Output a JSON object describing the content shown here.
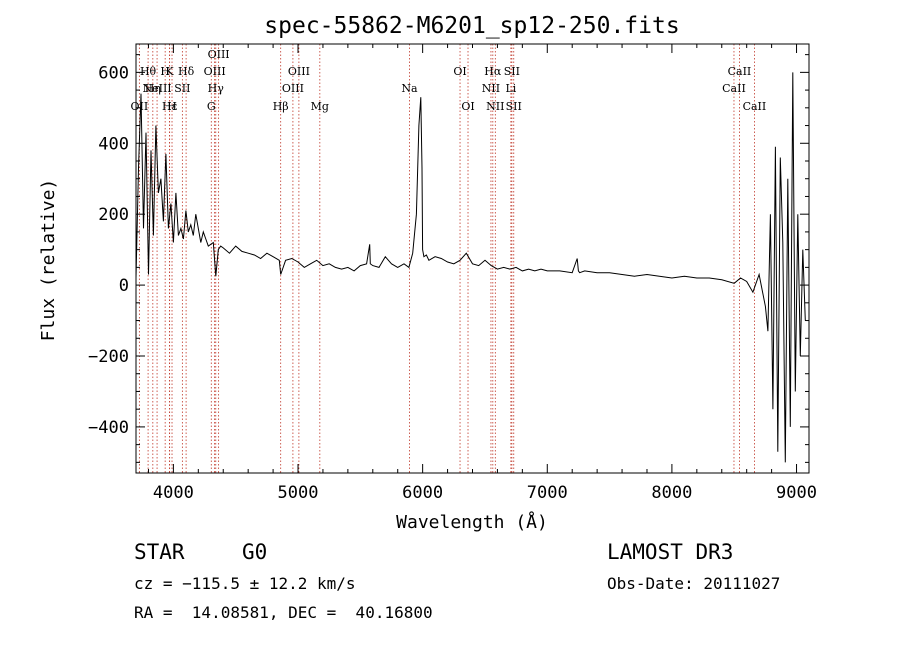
{
  "chart_data": {
    "type": "line",
    "title": "spec-55862-M6201_sp12-250.fits",
    "xlabel": "Wavelength (Å)",
    "ylabel": "Flux (relative)",
    "xlim": [
      3700,
      9100
    ],
    "ylim": [
      -530,
      680
    ],
    "x_ticks": [
      4000,
      5000,
      6000,
      7000,
      8000,
      9000
    ],
    "x_tick_labels": [
      "4000",
      "5000",
      "6000",
      "7000",
      "8000",
      "9000"
    ],
    "y_ticks": [
      -400,
      -200,
      0,
      200,
      400,
      600
    ],
    "y_tick_labels": [
      "−400",
      "−200",
      "0",
      "200",
      "400",
      "600"
    ],
    "grid": false,
    "series": [
      {
        "name": "spectrum",
        "color": "#000000",
        "x": [
          3700,
          3720,
          3740,
          3760,
          3780,
          3800,
          3820,
          3840,
          3860,
          3880,
          3900,
          3920,
          3940,
          3960,
          3980,
          4000,
          4020,
          4040,
          4060,
          4080,
          4100,
          4120,
          4140,
          4160,
          4180,
          4200,
          4220,
          4240,
          4260,
          4280,
          4300,
          4320,
          4340,
          4360,
          4380,
          4400,
          4450,
          4500,
          4550,
          4600,
          4650,
          4700,
          4750,
          4800,
          4850,
          4861,
          4900,
          4950,
          5000,
          5050,
          5100,
          5150,
          5200,
          5250,
          5300,
          5350,
          5400,
          5450,
          5500,
          5550,
          5575,
          5580,
          5600,
          5650,
          5700,
          5750,
          5800,
          5850,
          5890,
          5920,
          5950,
          5970,
          5985,
          5995,
          6000,
          6010,
          6030,
          6050,
          6100,
          6150,
          6200,
          6250,
          6300,
          6350,
          6400,
          6450,
          6500,
          6550,
          6600,
          6650,
          6700,
          6750,
          6800,
          6850,
          6900,
          6950,
          7000,
          7100,
          7200,
          7240,
          7250,
          7260,
          7300,
          7400,
          7500,
          7600,
          7700,
          7800,
          7900,
          8000,
          8100,
          8200,
          8300,
          8400,
          8500,
          8550,
          8600,
          8650,
          8700,
          8750,
          8770,
          8790,
          8810,
          8830,
          8850,
          8870,
          8890,
          8910,
          8930,
          8950,
          8970,
          8990,
          9010,
          9030,
          9050,
          9070
        ],
        "y": [
          20,
          330,
          540,
          160,
          430,
          30,
          380,
          140,
          450,
          260,
          300,
          180,
          370,
          160,
          230,
          120,
          260,
          140,
          160,
          130,
          210,
          150,
          170,
          140,
          200,
          160,
          120,
          150,
          130,
          110,
          115,
          120,
          25,
          100,
          110,
          105,
          90,
          110,
          95,
          90,
          85,
          75,
          90,
          80,
          70,
          30,
          70,
          75,
          65,
          50,
          60,
          70,
          55,
          60,
          50,
          45,
          50,
          40,
          55,
          60,
          115,
          60,
          55,
          50,
          80,
          60,
          50,
          60,
          50,
          90,
          200,
          450,
          530,
          330,
          100,
          80,
          85,
          70,
          80,
          75,
          65,
          60,
          70,
          90,
          60,
          55,
          70,
          55,
          45,
          50,
          45,
          50,
          40,
          45,
          40,
          45,
          40,
          40,
          35,
          75,
          40,
          35,
          40,
          35,
          35,
          30,
          25,
          30,
          25,
          20,
          25,
          20,
          20,
          15,
          5,
          20,
          10,
          -20,
          30,
          -60,
          -130,
          200,
          -350,
          390,
          -470,
          360,
          120,
          -500,
          300,
          -400,
          600,
          -300,
          200,
          -200,
          100,
          -100
        ]
      }
    ],
    "lines": [
      {
        "label": "OII",
        "wavelength": 3727,
        "row": 3
      },
      {
        "label": "Hθ",
        "wavelength": 3797,
        "row": 1
      },
      {
        "label": "Hη",
        "wavelength": 3835,
        "row": 2
      },
      {
        "label": "NeIII",
        "wavelength": 3869,
        "row": 2
      },
      {
        "label": "H",
        "wavelength": 3934,
        "row": 1
      },
      {
        "label": "K",
        "wavelength": 3969,
        "row": 1
      },
      {
        "label": "Hε",
        "wavelength": 3970,
        "row": 3
      },
      {
        "label": "H",
        "wavelength": 3989,
        "row": 3
      },
      {
        "label": "SII",
        "wavelength": 4072,
        "row": 2
      },
      {
        "label": "Hδ",
        "wavelength": 4102,
        "row": 1
      },
      {
        "label": "OIII",
        "wavelength": 4331,
        "row": 1
      },
      {
        "label": "Hγ",
        "wavelength": 4340,
        "row": 2
      },
      {
        "label": "G",
        "wavelength": 4304,
        "row": 3
      },
      {
        "label": "OIII",
        "wavelength": 4363,
        "row": 0
      },
      {
        "label": "Hβ",
        "wavelength": 4861,
        "row": 3
      },
      {
        "label": "OIII",
        "wavelength": 4959,
        "row": 2
      },
      {
        "label": "OIII",
        "wavelength": 5007,
        "row": 1
      },
      {
        "label": "Mg",
        "wavelength": 5175,
        "row": 3
      },
      {
        "label": "Na",
        "wavelength": 5894,
        "row": 2
      },
      {
        "label": "OI",
        "wavelength": 6300,
        "row": 1
      },
      {
        "label": "OI",
        "wavelength": 6364,
        "row": 3
      },
      {
        "label": "NII",
        "wavelength": 6548,
        "row": 2
      },
      {
        "label": "Hα",
        "wavelength": 6563,
        "row": 1
      },
      {
        "label": "NII",
        "wavelength": 6583,
        "row": 3
      },
      {
        "label": "Li",
        "wavelength": 6708,
        "row": 2
      },
      {
        "label": "SII",
        "wavelength": 6716,
        "row": 1
      },
      {
        "label": "SII",
        "wavelength": 6731,
        "row": 3
      },
      {
        "label": "CaII",
        "wavelength": 8498,
        "row": 2
      },
      {
        "label": "CaII",
        "wavelength": 8542,
        "row": 1
      },
      {
        "label": "CaII",
        "wavelength": 8662,
        "row": 3
      }
    ]
  },
  "info": {
    "class": "STAR",
    "subclass": "G0",
    "survey": "LAMOST DR3",
    "cz": "cz = −115.5 ± 12.2 km/s",
    "obs_date": "Obs-Date: 20111027",
    "coords": "RA =  14.08581, DEC =  40.16800"
  },
  "colors": {
    "spectrum": "#000000",
    "line_marker": "#c0392b",
    "axis": "#000000"
  }
}
